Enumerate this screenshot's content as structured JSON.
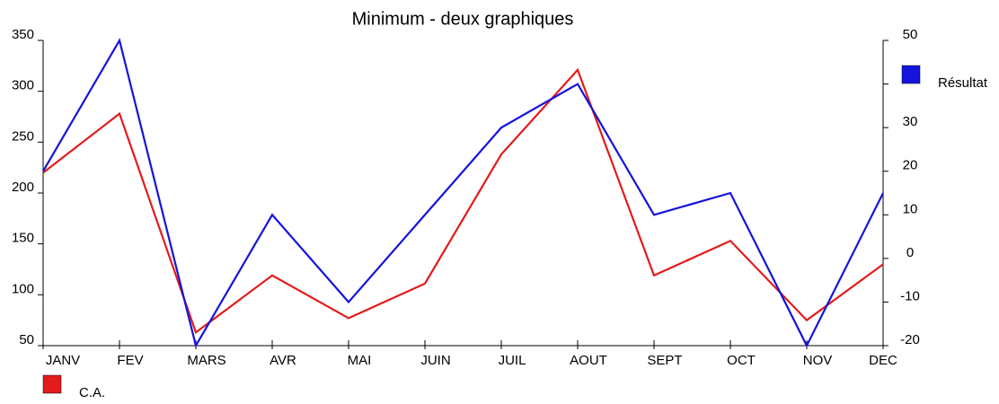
{
  "chart_data": {
    "type": "line",
    "title": "Minimum - deux graphiques",
    "categories": [
      "JANV",
      "FEV",
      "MARS",
      "AVR",
      "MAI",
      "JUIN",
      "JUIL",
      "AOUT",
      "SEPT",
      "OCT",
      "NOV",
      "DEC"
    ],
    "series": [
      {
        "name": "C.A.",
        "color": "#e31b1b",
        "values": [
          220,
          278,
          63,
          119,
          77,
          111,
          238,
          321,
          119,
          153,
          75,
          130
        ]
      },
      {
        "name": "Résultat",
        "color": "#1414dc",
        "axis": "y2",
        "values": [
          20,
          50,
          -20,
          10,
          -10,
          10,
          30,
          40,
          10,
          15,
          -20,
          15
        ]
      }
    ],
    "ylim": [
      50,
      350
    ],
    "yticks": [
      50,
      100,
      150,
      200,
      250,
      300,
      350
    ],
    "y2lim": [
      -20,
      50
    ],
    "y2ticks": [
      -20,
      -10,
      0,
      10,
      20,
      30,
      40,
      50
    ]
  }
}
